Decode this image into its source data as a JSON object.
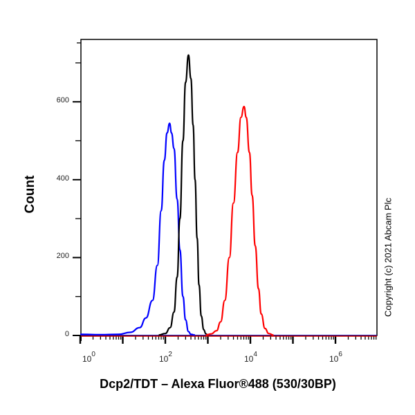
{
  "chart_data": {
    "type": "line",
    "title": "",
    "xlabel": "Dcp2/TDT – Alexa Fluor®488 (530/30BP)",
    "ylabel": "Count",
    "xscale": "log",
    "xlim": [
      1,
      10000000
    ],
    "ylim": [
      0,
      750
    ],
    "x_ticks": [
      {
        "base": "10",
        "exp": "0",
        "value": 1
      },
      {
        "base": "10",
        "exp": "2",
        "value": 100
      },
      {
        "base": "10",
        "exp": "4",
        "value": 10000
      },
      {
        "base": "10",
        "exp": "6",
        "value": 1000000
      }
    ],
    "y_ticks": [
      "0",
      "200",
      "400",
      "600"
    ],
    "grid": false,
    "legend": null,
    "annotations": [
      "Copyright (c) 2021 Abcam Plc"
    ],
    "series": [
      {
        "name": "blue",
        "color": "#0000ff",
        "peak_x": 126,
        "peak_y": 545,
        "points": [
          [
            1,
            3
          ],
          [
            3,
            2
          ],
          [
            8,
            3
          ],
          [
            15,
            8
          ],
          [
            25,
            20
          ],
          [
            35,
            45
          ],
          [
            50,
            90
          ],
          [
            65,
            180
          ],
          [
            80,
            320
          ],
          [
            95,
            450
          ],
          [
            110,
            520
          ],
          [
            126,
            545
          ],
          [
            140,
            520
          ],
          [
            160,
            480
          ],
          [
            190,
            350
          ],
          [
            220,
            220
          ],
          [
            260,
            100
          ],
          [
            300,
            40
          ],
          [
            350,
            10
          ],
          [
            400,
            3
          ],
          [
            500,
            1
          ]
        ]
      },
      {
        "name": "black",
        "color": "#000000",
        "peak_x": 350,
        "peak_y": 720,
        "points": [
          [
            70,
            1
          ],
          [
            100,
            5
          ],
          [
            130,
            20
          ],
          [
            160,
            60
          ],
          [
            190,
            150
          ],
          [
            220,
            300
          ],
          [
            260,
            500
          ],
          [
            300,
            650
          ],
          [
            350,
            720
          ],
          [
            400,
            660
          ],
          [
            450,
            540
          ],
          [
            500,
            400
          ],
          [
            560,
            250
          ],
          [
            620,
            130
          ],
          [
            700,
            50
          ],
          [
            800,
            15
          ],
          [
            900,
            4
          ],
          [
            1000,
            1
          ]
        ]
      },
      {
        "name": "red",
        "color": "#ff0000",
        "peak_x": 7100,
        "peak_y": 588,
        "points": [
          [
            900,
            1
          ],
          [
            1200,
            4
          ],
          [
            1600,
            12
          ],
          [
            2000,
            35
          ],
          [
            2500,
            90
          ],
          [
            3200,
            200
          ],
          [
            4000,
            340
          ],
          [
            5000,
            470
          ],
          [
            6000,
            560
          ],
          [
            7100,
            588
          ],
          [
            8000,
            560
          ],
          [
            9500,
            470
          ],
          [
            11000,
            360
          ],
          [
            13000,
            230
          ],
          [
            15500,
            120
          ],
          [
            18000,
            55
          ],
          [
            22000,
            18
          ],
          [
            27000,
            5
          ],
          [
            35000,
            1
          ]
        ]
      }
    ]
  },
  "labels": {
    "ylabel": "Count",
    "xlabel": "Dcp2/TDT – Alexa Fluor®488 (530/30BP)",
    "copyright": "Copyright (c) 2021 Abcam Plc",
    "yticks": [
      "0",
      "200",
      "400",
      "600"
    ],
    "xticks": [
      {
        "base": "10",
        "exp": "0"
      },
      {
        "base": "10",
        "exp": "2"
      },
      {
        "base": "10",
        "exp": "4"
      },
      {
        "base": "10",
        "exp": "6"
      }
    ]
  }
}
